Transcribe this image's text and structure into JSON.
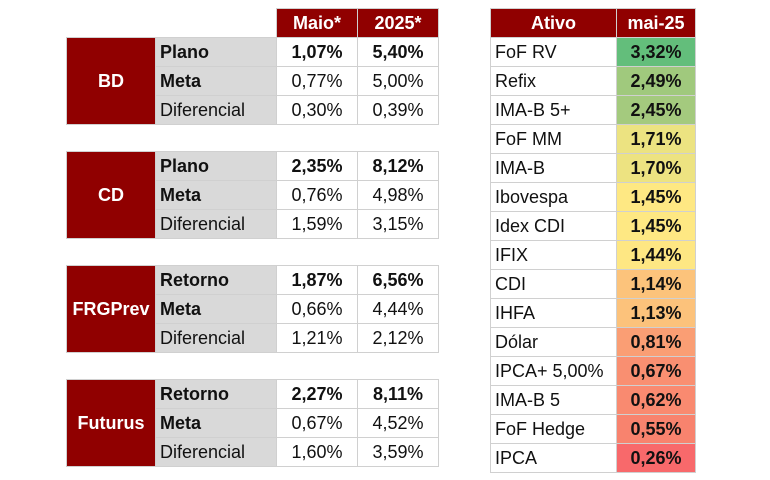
{
  "left_table": {
    "headers": [
      "Maio*",
      "2025*"
    ],
    "groups": [
      {
        "name": "BD",
        "rows": [
          {
            "label": "Plano",
            "maio": "1,07%",
            "ano": "5,40%",
            "bold": true
          },
          {
            "label": "Meta",
            "maio": "0,77%",
            "ano": "5,00%",
            "bold": false,
            "label_bold": true
          },
          {
            "label": "Diferencial",
            "maio": "0,30%",
            "ano": "0,39%",
            "bold": false
          }
        ]
      },
      {
        "name": "CD",
        "rows": [
          {
            "label": "Plano",
            "maio": "2,35%",
            "ano": "8,12%",
            "bold": true
          },
          {
            "label": "Meta",
            "maio": "0,76%",
            "ano": "4,98%",
            "bold": false,
            "label_bold": true
          },
          {
            "label": "Diferencial",
            "maio": "1,59%",
            "ano": "3,15%",
            "bold": false
          }
        ]
      },
      {
        "name": "FRGPrev",
        "rows": [
          {
            "label": "Retorno",
            "maio": "1,87%",
            "ano": "6,56%",
            "bold": true
          },
          {
            "label": "Meta",
            "maio": "0,66%",
            "ano": "4,44%",
            "bold": false,
            "label_bold": true
          },
          {
            "label": "Diferencial",
            "maio": "1,21%",
            "ano": "2,12%",
            "bold": false
          }
        ]
      },
      {
        "name": "Futurus",
        "rows": [
          {
            "label": "Retorno",
            "maio": "2,27%",
            "ano": "8,11%",
            "bold": true
          },
          {
            "label": "Meta",
            "maio": "0,67%",
            "ano": "4,52%",
            "bold": false,
            "label_bold": true
          },
          {
            "label": "Diferencial",
            "maio": "1,60%",
            "ano": "3,59%",
            "bold": false
          }
        ]
      }
    ]
  },
  "right_table": {
    "headers": [
      "Ativo",
      "mai-25"
    ],
    "rows": [
      {
        "ativo": "FoF RV",
        "valor": "3,32%",
        "color": "#63be7b"
      },
      {
        "ativo": "Refix",
        "valor": "2,49%",
        "color": "#a0c97d"
      },
      {
        "ativo": "IMA-B 5+",
        "valor": "2,45%",
        "color": "#a4ca7e"
      },
      {
        "ativo": "FoF MM",
        "valor": "1,71%",
        "color": "#ece381"
      },
      {
        "ativo": "IMA-B",
        "valor": "1,70%",
        "color": "#ede381"
      },
      {
        "ativo": "Ibovespa",
        "valor": "1,45%",
        "color": "#fee883"
      },
      {
        "ativo": "Idex CDI",
        "valor": "1,45%",
        "color": "#fee883"
      },
      {
        "ativo": "IFIX",
        "valor": "1,44%",
        "color": "#fee783"
      },
      {
        "ativo": "CDI",
        "valor": "1,14%",
        "color": "#fcc37b"
      },
      {
        "ativo": "IHFA",
        "valor": "1,13%",
        "color": "#fcc27b"
      },
      {
        "ativo": "Dólar",
        "valor": "0,81%",
        "color": "#fa9e74"
      },
      {
        "ativo": "IPCA+ 5,00%",
        "valor": "0,67%",
        "color": "#f98f71"
      },
      {
        "ativo": "IMA-B 5",
        "valor": "0,62%",
        "color": "#f98a70"
      },
      {
        "ativo": "FoF Hedge",
        "valor": "0,55%",
        "color": "#f8836e"
      },
      {
        "ativo": "IPCA",
        "valor": "0,26%",
        "color": "#f8696b"
      }
    ]
  }
}
